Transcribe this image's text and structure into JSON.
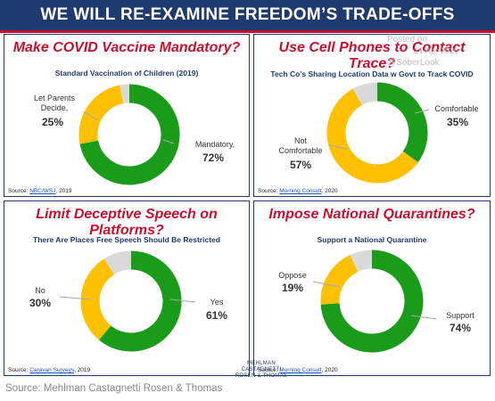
{
  "banner": {
    "title": "WE WILL RE-EXAMINE FREEDOM’S TRADE-OFFS"
  },
  "watermark": {
    "line1": "Posted on",
    "date": "14-Apr-2020",
    "handle": "@SoberLook"
  },
  "logo": {
    "line1": "MEHLMAN CASTAGNETTI",
    "line2": "ROSEN & THOMAS"
  },
  "footer": {
    "text": "Source: Mehlman Castagnetti Rosen & Thomas"
  },
  "colors": {
    "green": "#1a9c1a",
    "yellow": "#ffc000",
    "gray": "#d9d9d9",
    "navy": "#1f3a6e",
    "red": "#c8102e"
  },
  "chart_data": [
    {
      "type": "pie",
      "title": "Make COVID Vaccine Mandatory?",
      "subtitle": "Standard Vaccination of Children (2019)",
      "slices": [
        {
          "name": "Mandatory,",
          "value": 72,
          "label": "72%"
        },
        {
          "name": "Let Parents Decide,",
          "value": 25,
          "label": "25%"
        },
        {
          "name": "",
          "value": 3,
          "label": ""
        }
      ],
      "source_prefix": "Source: ",
      "source_link": "NBC/WSJ",
      "source_suffix": ", 2019"
    },
    {
      "type": "pie",
      "title": "Use Cell Phones to Contact Trace?",
      "subtitle": "Tech Co’s Sharing Location Data w Govt to Track COVID",
      "slices": [
        {
          "name": "Comfortable",
          "value": 35,
          "label": "35%"
        },
        {
          "name": "Not Comfortable",
          "value": 57,
          "label": "57%"
        },
        {
          "name": "",
          "value": 8,
          "label": ""
        }
      ],
      "source_prefix": "Source: ",
      "source_link": "Morning Consult",
      "source_suffix": ", 2020"
    },
    {
      "type": "pie",
      "title": "Limit Deceptive Speech on Platforms?",
      "subtitle": "There Are Places Free Speech Should Be Restricted",
      "slices": [
        {
          "name": "Yes",
          "value": 61,
          "label": "61%"
        },
        {
          "name": "No",
          "value": 30,
          "label": "30%"
        },
        {
          "name": "",
          "value": 9,
          "label": ""
        }
      ],
      "source_prefix": "Source: ",
      "source_link": "Caravan Surveys",
      "source_suffix": ", 2019"
    },
    {
      "type": "pie",
      "title": "Impose National Quarantines?",
      "subtitle": "Support a National Quarantine",
      "slices": [
        {
          "name": "Support",
          "value": 74,
          "label": "74%"
        },
        {
          "name": "Oppose",
          "value": 19,
          "label": "19%"
        },
        {
          "name": "",
          "value": 7,
          "label": ""
        }
      ],
      "source_prefix": "Source: ",
      "source_link": "Morning Consult",
      "source_suffix": ", 2020"
    }
  ]
}
